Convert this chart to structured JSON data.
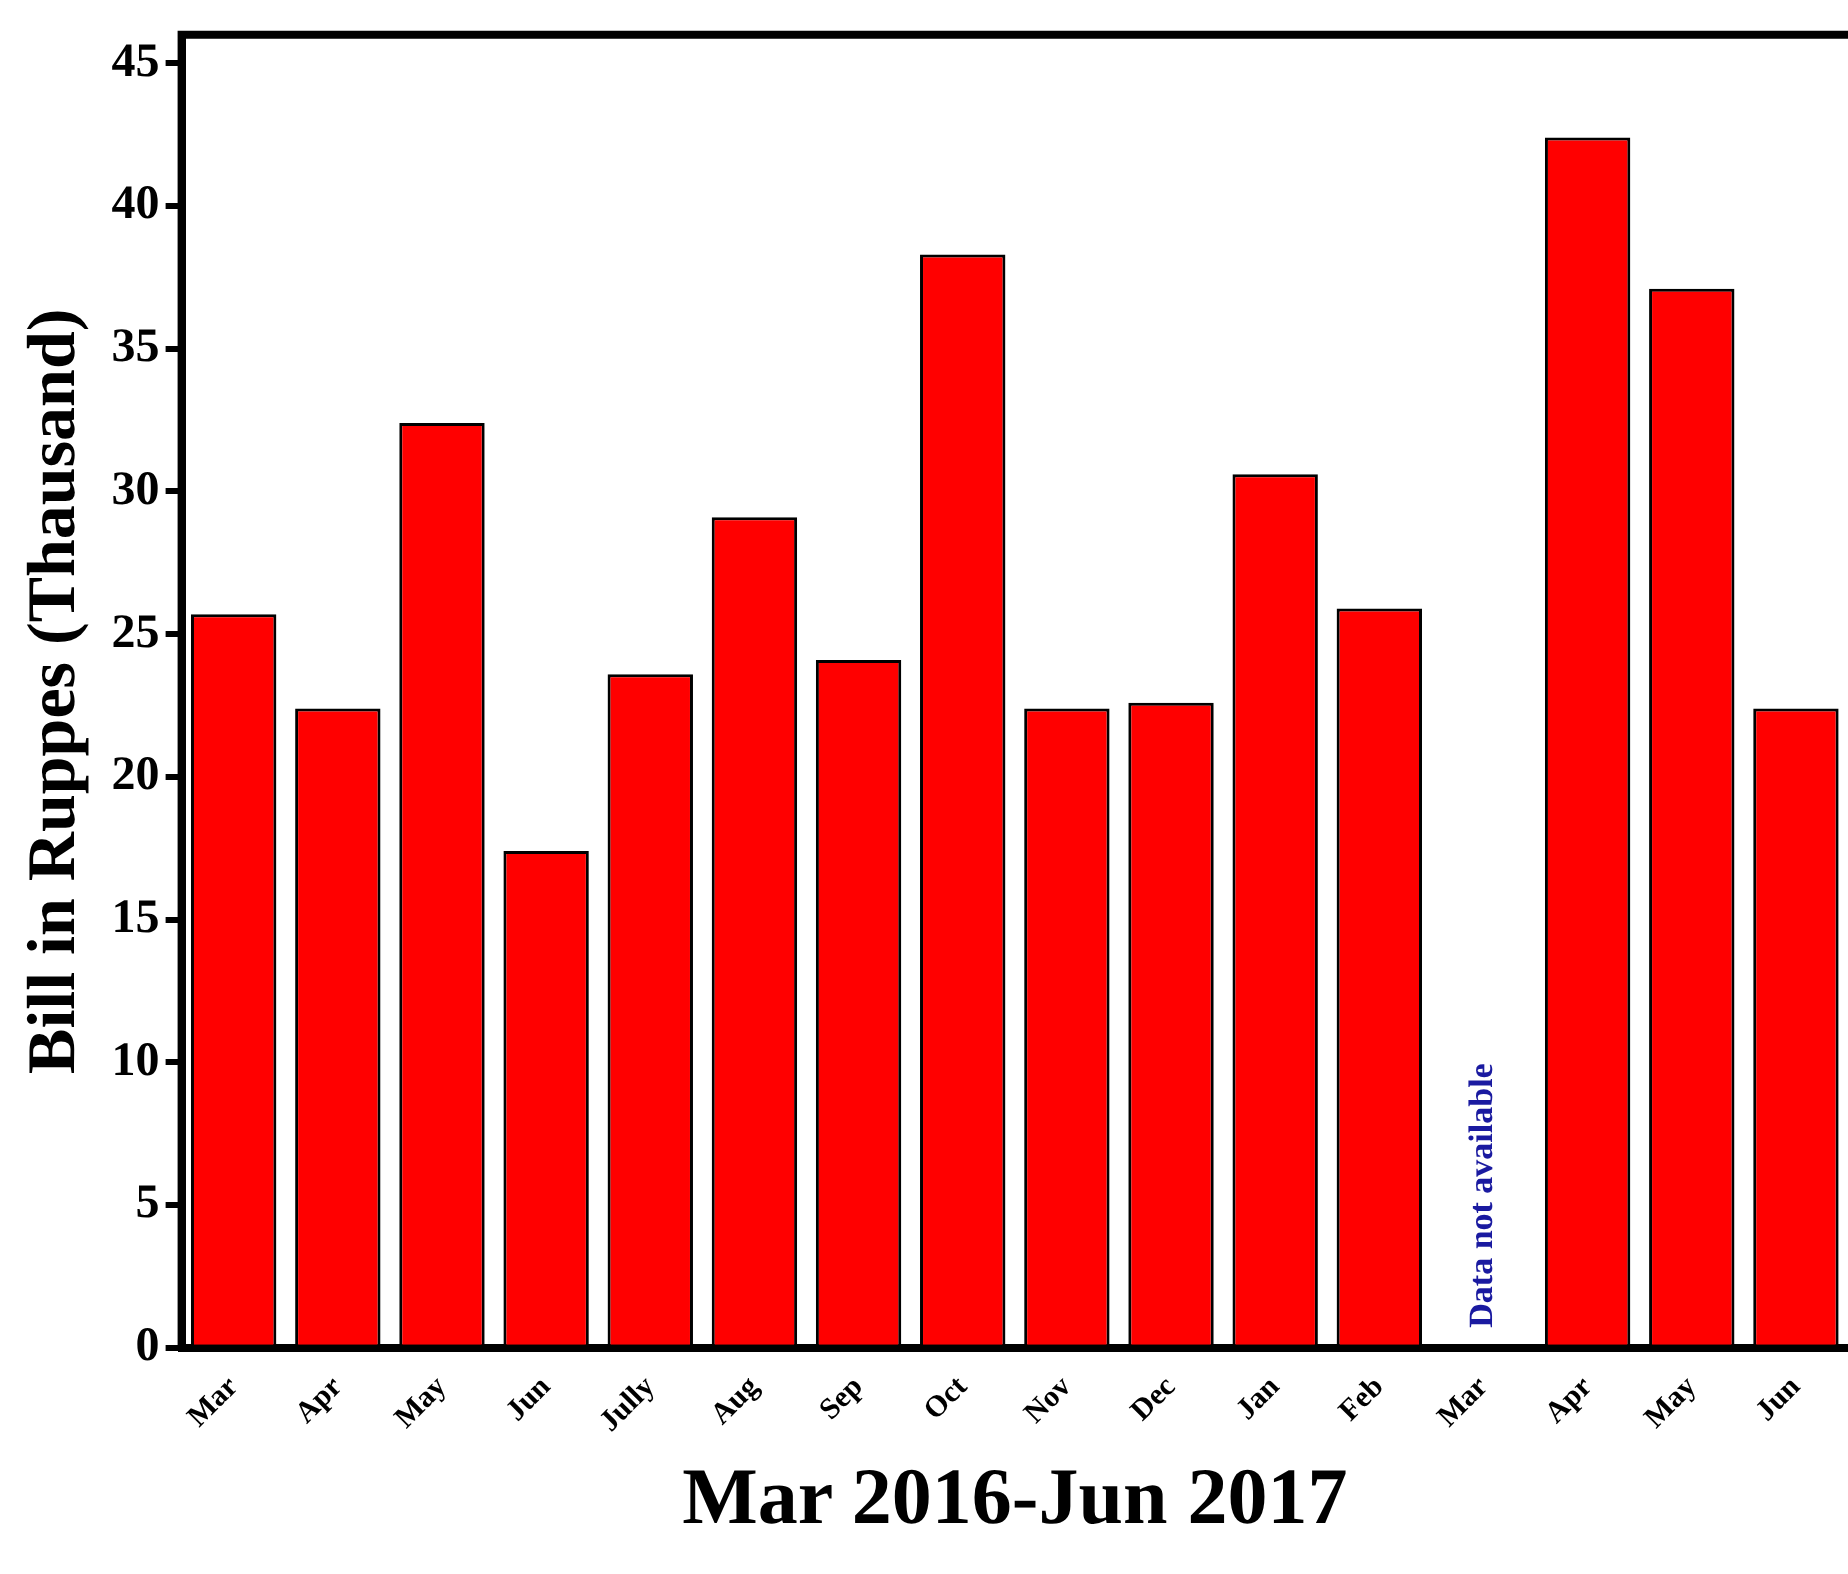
{
  "chart_data": {
    "type": "bar",
    "xlabel": "Mar 2016-Jun 2017",
    "ylabel": "Bill in Ruppes (Thausand)",
    "categories": [
      "Mar",
      "Apr",
      "May",
      "Jun",
      "Jully",
      "Aug",
      "Sep",
      "Oct",
      "Nov",
      "Dec",
      "Jan",
      "Feb",
      "Mar",
      "Apr",
      "May",
      "Jun"
    ],
    "values": [
      25.7,
      22.4,
      32.4,
      17.4,
      23.6,
      29.1,
      24.1,
      38.3,
      22.4,
      22.6,
      30.6,
      25.9,
      null,
      42.4,
      37.1,
      22.4
    ],
    "color": "#ff0000",
    "ylim": [
      0,
      46
    ],
    "yticks": [
      0,
      5,
      10,
      15,
      20,
      25,
      30,
      35,
      40,
      45
    ],
    "annotations": [
      "Data not available"
    ],
    "grid": false,
    "legend": false
  }
}
